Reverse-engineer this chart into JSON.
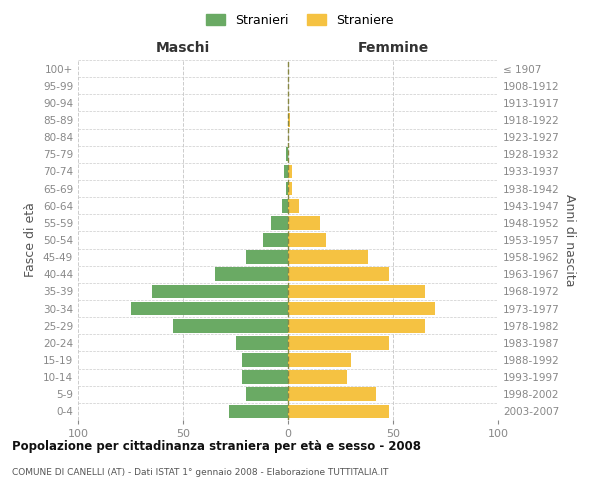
{
  "age_groups": [
    "100+",
    "95-99",
    "90-94",
    "85-89",
    "80-84",
    "75-79",
    "70-74",
    "65-69",
    "60-64",
    "55-59",
    "50-54",
    "45-49",
    "40-44",
    "35-39",
    "30-34",
    "25-29",
    "20-24",
    "15-19",
    "10-14",
    "5-9",
    "0-4"
  ],
  "birth_years": [
    "≤ 1907",
    "1908-1912",
    "1913-1917",
    "1918-1922",
    "1923-1927",
    "1928-1932",
    "1933-1937",
    "1938-1942",
    "1943-1947",
    "1948-1952",
    "1953-1957",
    "1958-1962",
    "1963-1967",
    "1968-1972",
    "1973-1977",
    "1978-1982",
    "1983-1987",
    "1988-1992",
    "1993-1997",
    "1998-2002",
    "2003-2007"
  ],
  "maschi": [
    0,
    0,
    0,
    0,
    0,
    1,
    2,
    1,
    3,
    8,
    12,
    20,
    35,
    65,
    75,
    55,
    25,
    22,
    22,
    20,
    28
  ],
  "femmine": [
    0,
    0,
    0,
    1,
    0,
    0,
    2,
    2,
    5,
    15,
    18,
    38,
    48,
    65,
    70,
    65,
    48,
    30,
    28,
    42,
    48
  ],
  "color_maschi": "#6aaa64",
  "color_femmine_bar": "#f5c242",
  "xlim": 100,
  "title": "Popolazione per cittadinanza straniera per età e sesso - 2008",
  "subtitle": "COMUNE DI CANELLI (AT) - Dati ISTAT 1° gennaio 2008 - Elaborazione TUTTITALIA.IT",
  "ylabel_left": "Fasce di età",
  "ylabel_right": "Anni di nascita",
  "xlabel_left": "Maschi",
  "xlabel_top_right": "Femmine",
  "legend_stranieri": "Stranieri",
  "legend_straniere": "Straniere",
  "bar_height": 0.8,
  "background_color": "#ffffff",
  "grid_color": "#cccccc",
  "axis_label_color": "#555555",
  "tick_label_color": "#888888"
}
